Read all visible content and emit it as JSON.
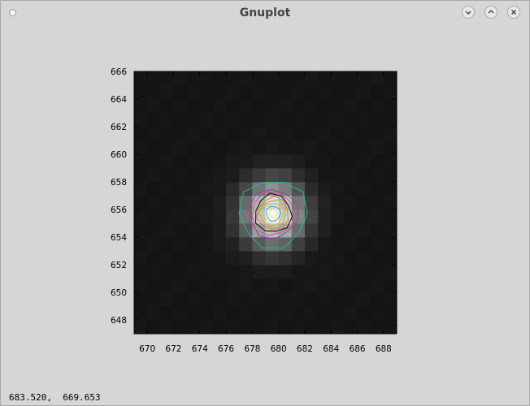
{
  "window": {
    "title": "Gnuplot",
    "buttons": [
      "minimize",
      "maximize",
      "close"
    ]
  },
  "status": {
    "coordinates": "683.520,  669.653"
  },
  "colors": {
    "background": "#d6d6d6",
    "plot_background": "#0b0b0b"
  },
  "chart_data": {
    "type": "heatmap",
    "title": "",
    "xlabel": "",
    "ylabel": "",
    "xlim": [
      669,
      689
    ],
    "ylim": [
      647,
      666
    ],
    "x_ticks": [
      "670",
      "672",
      "674",
      "676",
      "678",
      "680",
      "682",
      "684",
      "686",
      "688"
    ],
    "y_ticks": [
      "648",
      "650",
      "652",
      "654",
      "656",
      "658",
      "660",
      "662",
      "664",
      "666"
    ],
    "heatmap": {
      "peak_center": [
        679.6,
        655.7
      ],
      "spread_sigma": 1.6,
      "peak_value": 1.0,
      "background_value": 0.04
    },
    "contours": [
      {
        "level": 0.12,
        "color": "#1bbd92",
        "radius": [
          2.6,
          2.5
        ]
      },
      {
        "level": 0.25,
        "color": "#7a4fa8",
        "radius": [
          1.9,
          1.8
        ]
      },
      {
        "level": 0.35,
        "color": "#d64c8f",
        "radius": [
          1.7,
          1.6
        ]
      },
      {
        "level": 0.45,
        "color": "#000000",
        "radius": [
          1.4,
          1.4
        ]
      },
      {
        "level": 0.55,
        "color": "#e86d3a",
        "radius": [
          1.2,
          1.2
        ]
      },
      {
        "level": 0.65,
        "color": "#8fb73a",
        "radius": [
          1.0,
          1.0
        ]
      },
      {
        "level": 0.75,
        "color": "#e3b52c",
        "radius": [
          0.8,
          0.8
        ]
      },
      {
        "level": 0.85,
        "color": "#3ba0d8",
        "radius": [
          0.55,
          0.55
        ]
      },
      {
        "level": 0.95,
        "color": "#f0e24a",
        "radius": [
          0.3,
          0.3
        ]
      }
    ]
  }
}
